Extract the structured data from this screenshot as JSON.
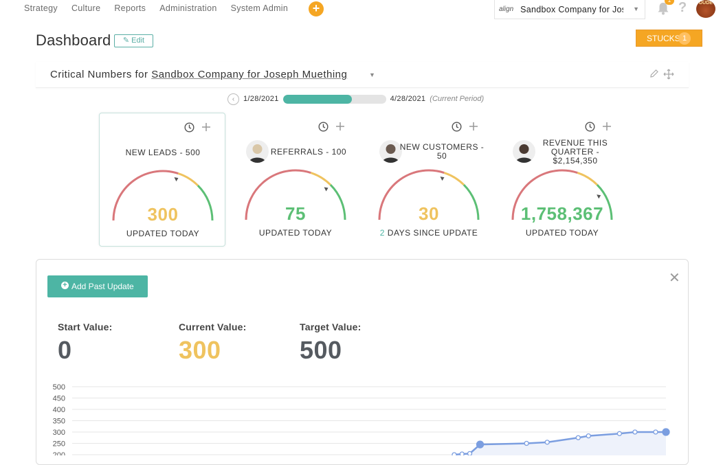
{
  "nav": {
    "links": [
      "Strategy",
      "Culture",
      "Reports",
      "Administration",
      "System Admin"
    ],
    "add_icon": "+",
    "company_logo": "align",
    "company_name": "Sandbox Company for Joseph Muething",
    "notification_count": "1",
    "help_icon": "?",
    "user_avatar": "DUDE"
  },
  "header": {
    "title": "Dashboard",
    "edit_label": "Edit",
    "stucks_label": "STUCKS",
    "stucks_count": "1"
  },
  "critical": {
    "prefix": "Critical Numbers for",
    "company": "Sandbox Company for Joseph Muething"
  },
  "period": {
    "start": "1/28/2021",
    "end": "4/28/2021",
    "current_label": "(Current Period)",
    "progress": 0.67
  },
  "cards": [
    {
      "title": "NEW LEADS - 500",
      "value": "300",
      "value_color": "#efc35f",
      "updated": "UPDATED TODAY",
      "updated_num": "",
      "marker": 0.6,
      "has_avatar": false
    },
    {
      "title": "REFERRALS - 100",
      "value": "75",
      "value_color": "#5cbf75",
      "updated": "UPDATED TODAY",
      "updated_num": "",
      "marker": 0.75,
      "has_avatar": true
    },
    {
      "title": "NEW CUSTOMERS - 50",
      "value": "30",
      "value_color": "#efc35f",
      "updated": "DAYS SINCE UPDATE",
      "updated_num": "2",
      "marker": 0.6,
      "has_avatar": true
    },
    {
      "title": "REVENUE THIS QUARTER - $2,154,350",
      "value": "1,758,367",
      "value_color": "#5cbf75",
      "updated": "UPDATED TODAY",
      "updated_num": "",
      "marker": 0.82,
      "has_avatar": true
    }
  ],
  "detail": {
    "add_past_label": "Add Past Update",
    "start_label": "Start Value:",
    "start_value": "0",
    "current_label": "Current Value:",
    "current_value": "300",
    "target_label": "Target Value:",
    "target_value": "500",
    "colors": {
      "start": "#555a60",
      "current": "#efc35f",
      "target": "#555a60"
    }
  },
  "colors": {
    "teal": "#4db5a4",
    "orange": "#f5a623",
    "red": "#d9777b",
    "yellow": "#efc35f",
    "green": "#5cbf75",
    "line": "#7b9ee0"
  },
  "chart_data": {
    "type": "line",
    "yticks": [
      500,
      450,
      400,
      350,
      300,
      250,
      200
    ],
    "ylim": [
      200,
      500
    ],
    "grid": true,
    "series": [
      {
        "x": [
          0.74,
          0.755,
          0.77,
          0.79,
          0.88,
          0.92,
          0.98,
          1.0,
          1.06,
          1.09,
          1.13,
          1.15
        ],
        "y": [
          200,
          203,
          205,
          245,
          250,
          255,
          275,
          283,
          293,
          300,
          300,
          300
        ]
      }
    ]
  }
}
